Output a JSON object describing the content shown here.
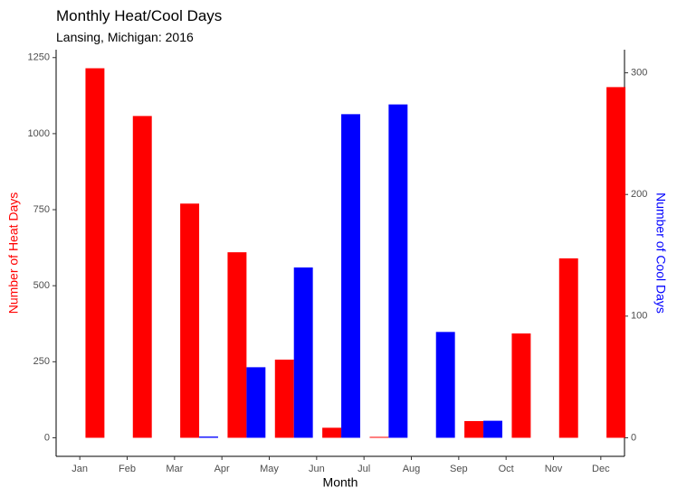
{
  "chart_data": {
    "type": "bar",
    "title": "Monthly Heat/Cool Days",
    "subtitle": "Lansing, Michigan: 2016",
    "xlabel": "Month",
    "ylabel": "Number of Heat Days",
    "y2label": "Number of Cool Days",
    "categories": [
      "Jan",
      "Feb",
      "Mar",
      "Apr",
      "May",
      "Jun",
      "Jul",
      "Aug",
      "Sep",
      "Oct",
      "Nov",
      "Dec"
    ],
    "series": [
      {
        "name": "Heat Days",
        "color": "#ff0000",
        "values": [
          1215,
          1058,
          770,
          610,
          257,
          33,
          3,
          0,
          55,
          343,
          590,
          1153
        ]
      },
      {
        "name": "Cool Days",
        "color": "#0000ff",
        "axis": "y2",
        "values": [
          0,
          0,
          0,
          1,
          58,
          140,
          266,
          274,
          87,
          14,
          0,
          0
        ]
      }
    ],
    "ylim": [
      -61,
      1276
    ],
    "yticks": [
      0,
      250,
      500,
      750,
      1000,
      1250
    ],
    "y2lim": [
      -15.25,
      319
    ],
    "y2ticks": [
      0,
      100,
      200,
      300
    ],
    "grid": false
  }
}
